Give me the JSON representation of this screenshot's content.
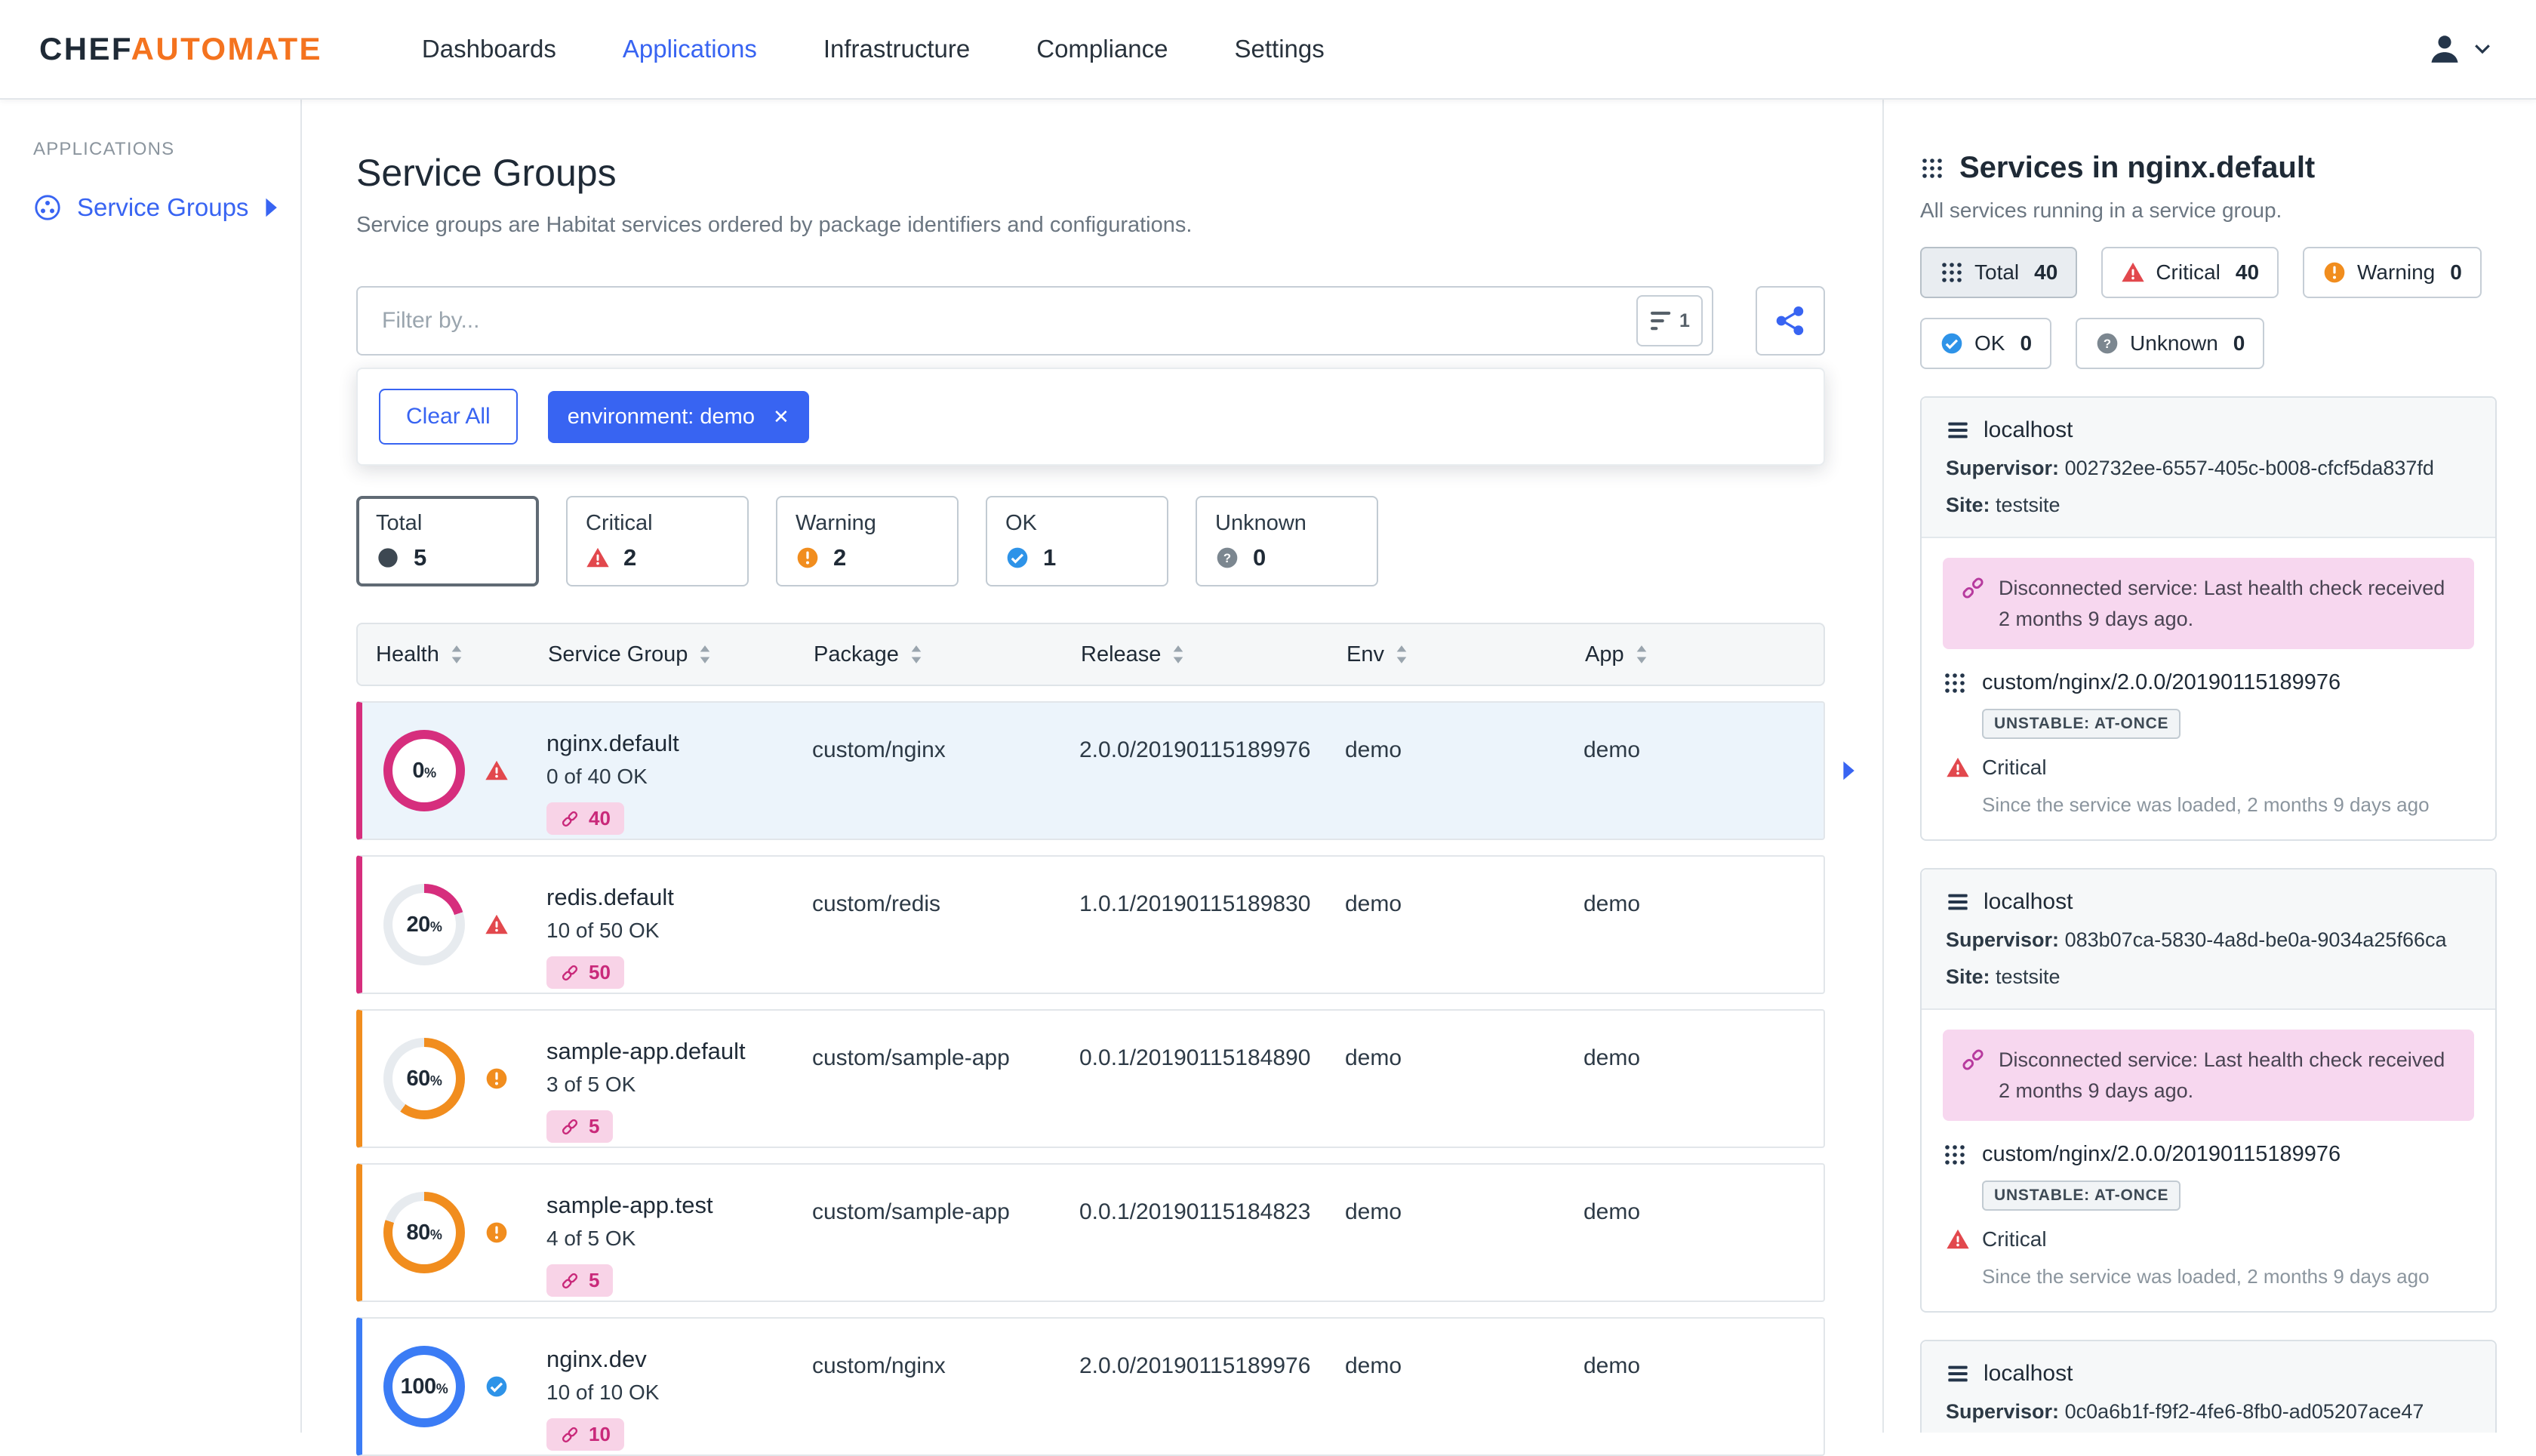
{
  "colors": {
    "accent_blue": "#3864f2",
    "brand_orange": "#f4731f",
    "critical_magenta": "#d62e7d",
    "critical_red": "#e2484d",
    "warning_orange": "#f18d1e",
    "ok_blue": "#2e93e8",
    "ok_donut_blue": "#3b7cf5"
  },
  "topnav": {
    "brand_primary": "CHEF",
    "brand_secondary": "AUTOMATE",
    "items": [
      {
        "label": "Dashboards",
        "active": false
      },
      {
        "label": "Applications",
        "active": true
      },
      {
        "label": "Infrastructure",
        "active": false
      },
      {
        "label": "Compliance",
        "active": false
      },
      {
        "label": "Settings",
        "active": false
      }
    ]
  },
  "sidebar": {
    "heading": "APPLICATIONS",
    "items": [
      {
        "label": "Service Groups",
        "active": true
      }
    ]
  },
  "main": {
    "title": "Service Groups",
    "subtitle": "Service groups are Habitat services ordered by package identifiers and configurations.",
    "filter": {
      "placeholder": "Filter by...",
      "applied_count": "1",
      "clear_all_label": "Clear All",
      "chips": [
        {
          "label": "environment: demo"
        }
      ]
    },
    "status_cards": [
      {
        "label": "Total",
        "count": "5",
        "icon": "total-icon",
        "selected": true
      },
      {
        "label": "Critical",
        "count": "2",
        "icon": "critical-icon",
        "selected": false
      },
      {
        "label": "Warning",
        "count": "2",
        "icon": "warning-icon",
        "selected": false
      },
      {
        "label": "OK",
        "count": "1",
        "icon": "ok-icon",
        "selected": false
      },
      {
        "label": "Unknown",
        "count": "0",
        "icon": "unknown-icon",
        "selected": false
      }
    ],
    "table": {
      "columns": [
        "Health",
        "Service Group",
        "Package",
        "Release",
        "Env",
        "App"
      ],
      "rows": [
        {
          "percent": "0",
          "donut_fill": 100,
          "accent": "#d62e7d",
          "status": "critical",
          "name": "nginx.default",
          "ok_text": "0 of 40 OK",
          "badge": "40",
          "package": "custom/nginx",
          "release": "2.0.0/20190115189976",
          "env": "demo",
          "app": "demo",
          "selected": true
        },
        {
          "percent": "20",
          "donut_fill": 20,
          "accent": "#d62e7d",
          "status": "critical",
          "name": "redis.default",
          "ok_text": "10 of 50 OK",
          "badge": "50",
          "package": "custom/redis",
          "release": "1.0.1/20190115189830",
          "env": "demo",
          "app": "demo",
          "selected": false
        },
        {
          "percent": "60",
          "donut_fill": 60,
          "accent": "#f18d1e",
          "status": "warning",
          "name": "sample-app.default",
          "ok_text": "3 of 5 OK",
          "badge": "5",
          "package": "custom/sample-app",
          "release": "0.0.1/20190115184890",
          "env": "demo",
          "app": "demo",
          "selected": false
        },
        {
          "percent": "80",
          "donut_fill": 80,
          "accent": "#f18d1e",
          "status": "warning",
          "name": "sample-app.test",
          "ok_text": "4 of 5 OK",
          "badge": "5",
          "package": "custom/sample-app",
          "release": "0.0.1/20190115184823",
          "env": "demo",
          "app": "demo",
          "selected": false
        },
        {
          "percent": "100",
          "donut_fill": 100,
          "accent": "#3b7cf5",
          "status": "ok",
          "name": "nginx.dev",
          "ok_text": "10 of 10 OK",
          "badge": "10",
          "package": "custom/nginx",
          "release": "2.0.0/20190115189976",
          "env": "demo",
          "app": "demo",
          "selected": false
        }
      ]
    }
  },
  "panel": {
    "title": "Services in nginx.default",
    "subtitle": "All services running in a service group.",
    "badges": [
      {
        "label": "Total",
        "count": "40",
        "icon": "services-icon",
        "selected": true
      },
      {
        "label": "Critical",
        "count": "40",
        "icon": "critical-icon",
        "selected": false
      },
      {
        "label": "Warning",
        "count": "0",
        "icon": "warning-icon",
        "selected": false
      },
      {
        "label": "OK",
        "count": "0",
        "icon": "ok-icon",
        "selected": false
      },
      {
        "label": "Unknown",
        "count": "0",
        "icon": "unknown-icon",
        "selected": false
      }
    ],
    "cards": [
      {
        "host": "localhost",
        "supervisor_label": "Supervisor:",
        "supervisor": "002732ee-6557-405c-b008-cfcf5da837fd",
        "site_label": "Site:",
        "site": "testsite",
        "alert": "Disconnected service: Last health check received 2 months 9 days ago.",
        "package": "custom/nginx/2.0.0/20190115189976",
        "health_badge": "UNSTABLE: AT-ONCE",
        "status": "Critical",
        "status_note": "Since the service was loaded, 2 months 9 days ago"
      },
      {
        "host": "localhost",
        "supervisor_label": "Supervisor:",
        "supervisor": "083b07ca-5830-4a8d-be0a-9034a25f66ca",
        "site_label": "Site:",
        "site": "testsite",
        "alert": "Disconnected service: Last health check received 2 months 9 days ago.",
        "package": "custom/nginx/2.0.0/20190115189976",
        "health_badge": "UNSTABLE: AT-ONCE",
        "status": "Critical",
        "status_note": "Since the service was loaded, 2 months 9 days ago"
      },
      {
        "host": "localhost",
        "supervisor_label": "Supervisor:",
        "supervisor": "0c0a6b1f-f9f2-4fe6-8fb0-ad05207ace47"
      }
    ]
  }
}
